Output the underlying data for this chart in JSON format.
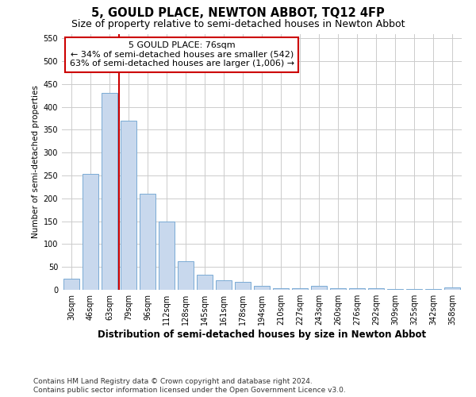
{
  "title": "5, GOULD PLACE, NEWTON ABBOT, TQ12 4FP",
  "subtitle": "Size of property relative to semi-detached houses in Newton Abbot",
  "xlabel": "Distribution of semi-detached houses by size in Newton Abbot",
  "ylabel": "Number of semi-detached properties",
  "categories": [
    "30sqm",
    "46sqm",
    "63sqm",
    "79sqm",
    "96sqm",
    "112sqm",
    "128sqm",
    "145sqm",
    "161sqm",
    "178sqm",
    "194sqm",
    "210sqm",
    "227sqm",
    "243sqm",
    "260sqm",
    "276sqm",
    "292sqm",
    "309sqm",
    "325sqm",
    "342sqm",
    "358sqm"
  ],
  "values": [
    25,
    253,
    430,
    370,
    210,
    150,
    63,
    33,
    20,
    18,
    8,
    3,
    3,
    8,
    3,
    3,
    3,
    1,
    1,
    1,
    6
  ],
  "bar_color": "#c8d8ed",
  "bar_edge_color": "#7aaad4",
  "redline_x": 2.5,
  "annotation_title": "5 GOULD PLACE: 76sqm",
  "annotation_line1": "← 34% of semi-detached houses are smaller (542)",
  "annotation_line2": "63% of semi-detached houses are larger (1,006) →",
  "ann_facecolor": "#ffffff",
  "ann_edgecolor": "#cc0000",
  "ylim": [
    0,
    560
  ],
  "yticks": [
    0,
    50,
    100,
    150,
    200,
    250,
    300,
    350,
    400,
    450,
    500,
    550
  ],
  "fig_bg_color": "#ffffff",
  "plot_bg_color": "#ffffff",
  "grid_color": "#cccccc",
  "footnote1": "Contains HM Land Registry data © Crown copyright and database right 2024.",
  "footnote2": "Contains public sector information licensed under the Open Government Licence v3.0.",
  "title_fontsize": 10.5,
  "subtitle_fontsize": 9,
  "xlabel_fontsize": 8.5,
  "ylabel_fontsize": 7.5,
  "tick_fontsize": 7,
  "ann_fontsize": 8,
  "footnote_fontsize": 6.5
}
